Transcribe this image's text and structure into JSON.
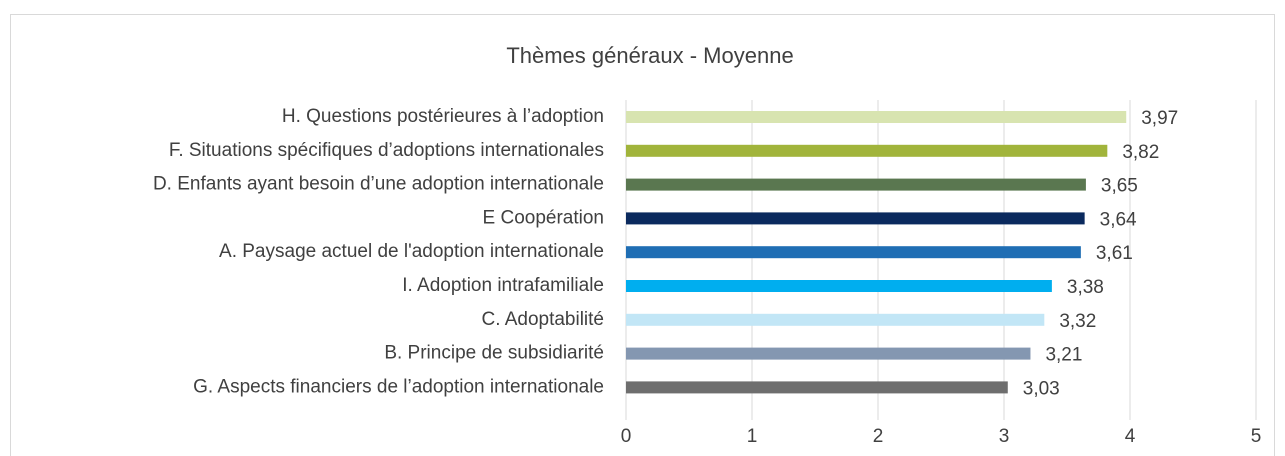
{
  "chart_data": {
    "type": "bar",
    "orientation": "horizontal",
    "title": "Thèmes généraux - Moyenne",
    "categories": [
      "H. Questions postérieures à l’adoption",
      "F. Situations spécifiques d’adoptions internationales",
      "D. Enfants ayant besoin d’une adoption internationale",
      "E Coopération",
      "A. Paysage actuel de l'adoption internationale",
      "I. Adoption intrafamiliale",
      "C. Adoptabilité",
      "B. Principe de subsidiarité",
      "G. Aspects financiers de l’adoption internationale"
    ],
    "values": [
      3.97,
      3.82,
      3.65,
      3.64,
      3.61,
      3.38,
      3.32,
      3.21,
      3.03
    ],
    "value_labels": [
      "3,97",
      "3,82",
      "3,65",
      "3,64",
      "3,61",
      "3,38",
      "3,32",
      "3,21",
      "3,03"
    ],
    "colors": [
      "#d8e4b0",
      "#a1b43b",
      "#5a7750",
      "#0b2a5e",
      "#1f6eb4",
      "#00aeef",
      "#c2e6f6",
      "#8497b1",
      "#6e6e6e"
    ],
    "xlim": [
      0,
      5
    ],
    "xticks": [
      0,
      1,
      2,
      3,
      4,
      5
    ],
    "grid": true
  }
}
